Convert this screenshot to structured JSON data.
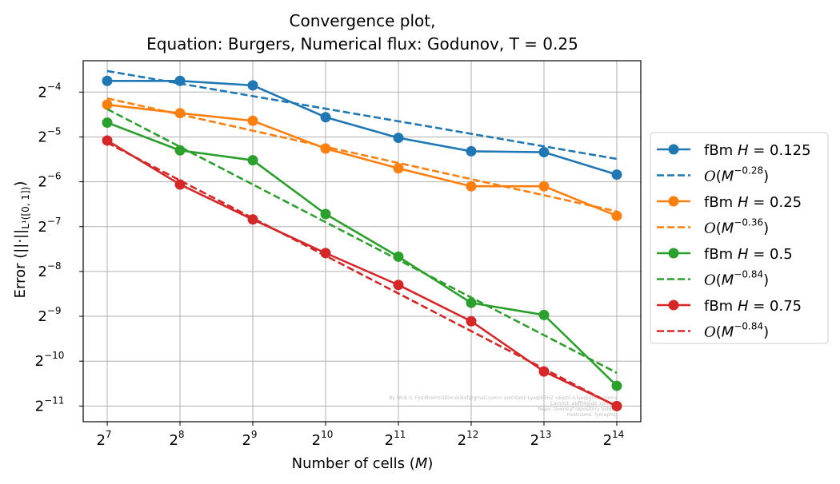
{
  "chart_data": {
    "type": "line",
    "title_line1": "Convergence plot,",
    "title_line2": "Equation: Burgers, Numerical flux: Godunov, T = 0.25",
    "xlabel": "Number of cells (",
    "xlabel_var": "M",
    "xlabel_end": ")",
    "ylabel": "Error (||·||",
    "ylabel_sub": "L¹([0, 1])",
    "ylabel_end": ")",
    "x_scale": "log2",
    "y_scale": "log2",
    "x": [
      128,
      256,
      512,
      1024,
      2048,
      4096,
      8192,
      16384
    ],
    "x_tick_exponents": [
      7,
      8,
      9,
      10,
      11,
      12,
      13,
      14
    ],
    "y_tick_exponents": [
      -4,
      -5,
      -6,
      -7,
      -8,
      -9,
      -10,
      -11
    ],
    "xlim_log2": [
      6.67,
      14.33
    ],
    "ylim_log2": [
      -11.35,
      -3.3
    ],
    "grid": true,
    "legend_position": "outside-right",
    "series": [
      {
        "name": "fBm H = 0.125",
        "color": "#1f77b4",
        "log2_values": [
          -3.75,
          -3.75,
          -3.85,
          -4.56,
          -5.02,
          -5.32,
          -5.34,
          -5.84
        ],
        "fit_log2_values": [
          -3.53,
          -3.81,
          -4.09,
          -4.37,
          -4.65,
          -4.93,
          -5.21,
          -5.49
        ],
        "fit_label": "O(M^-0.28)",
        "fit_exponent": "−0.28"
      },
      {
        "name": "fBm H = 0.25",
        "color": "#ff7f0e",
        "log2_values": [
          -4.28,
          -4.47,
          -4.64,
          -5.26,
          -5.7,
          -6.1,
          -6.1,
          -6.76
        ],
        "fit_log2_values": [
          -4.14,
          -4.5,
          -4.86,
          -5.22,
          -5.58,
          -5.94,
          -6.3,
          -6.66
        ],
        "fit_label": "O(M^-0.36)",
        "fit_exponent": "−0.36"
      },
      {
        "name": "fBm H = 0.5",
        "color": "#2ca02c",
        "log2_values": [
          -4.68,
          -5.3,
          -5.52,
          -6.72,
          -7.67,
          -8.7,
          -8.97,
          -10.55
        ],
        "fit_log2_values": [
          -4.38,
          -5.22,
          -6.06,
          -6.9,
          -7.74,
          -8.58,
          -9.42,
          -10.26
        ],
        "fit_label": "O(M^-0.84)",
        "fit_exponent": "−0.84"
      },
      {
        "name": "fBm H = 0.75",
        "color": "#d62728",
        "log2_values": [
          -5.08,
          -6.06,
          -6.84,
          -7.59,
          -8.3,
          -9.11,
          -10.23,
          -11.0
        ],
        "fit_log2_values": [
          -5.13,
          -5.97,
          -6.81,
          -7.65,
          -8.49,
          -9.33,
          -10.17,
          -11.01
        ],
        "fit_label": "O(M^-0.84)",
        "fit_exponent": "−0.84"
      }
    ],
    "watermark": {
      "line1": "By Ulrik S. Fjordholm(UiO<ulriksf@gmail.com> and Kjetil Lye@ETHZ <kjetil.o.lye@gmail.com>",
      "line2": "Commit: abfff4@git_commit",
      "line3": "Repo: Overleaf repository hidden",
      "line4": "Hostname: lyeraptop"
    }
  }
}
